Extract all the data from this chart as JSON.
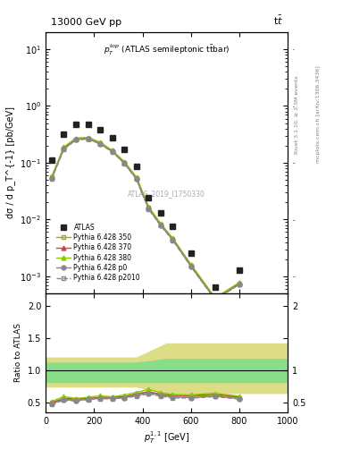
{
  "title_left": "13000 GeV pp",
  "title_right": "tt",
  "annotation": "p_T^{top} (ATLAS semileptonic ttbar)",
  "watermark": "ATLAS_2019_I1750330",
  "right_label_top": "Rivet 3.1.10, ≥ 3.3M events",
  "right_label_bottom": "mcplots.cern.ch [arXiv:1306.3436]",
  "ylabel_main": "dσ / d p_T^{-1} [pb/GeV]",
  "ylabel_ratio": "Ratio to ATLAS",
  "xlabel": "p_T^{1,1} [GeV]",
  "xlim": [
    0,
    1000
  ],
  "ylim_main": [
    0.0005,
    20
  ],
  "ylim_ratio": [
    0.35,
    2.2
  ],
  "atlas_x": [
    25,
    75,
    125,
    175,
    225,
    275,
    325,
    375,
    425,
    475,
    525,
    600,
    700,
    800
  ],
  "atlas_y": [
    0.11,
    0.32,
    0.48,
    0.48,
    0.38,
    0.28,
    0.17,
    0.085,
    0.024,
    0.013,
    0.0075,
    0.0026,
    0.00065,
    0.0013
  ],
  "mc_x": [
    25,
    75,
    125,
    175,
    225,
    275,
    325,
    375,
    425,
    475,
    525,
    600,
    700,
    800
  ],
  "mc_350_y": [
    0.055,
    0.18,
    0.26,
    0.27,
    0.22,
    0.16,
    0.1,
    0.054,
    0.016,
    0.0081,
    0.0045,
    0.00155,
    0.0004,
    0.00075
  ],
  "mc_370_y": [
    0.055,
    0.18,
    0.27,
    0.27,
    0.22,
    0.165,
    0.1,
    0.054,
    0.016,
    0.0082,
    0.0046,
    0.00158,
    0.00041,
    0.00076
  ],
  "mc_380_y": [
    0.057,
    0.19,
    0.27,
    0.28,
    0.23,
    0.165,
    0.105,
    0.056,
    0.017,
    0.0085,
    0.0047,
    0.00162,
    0.00042,
    0.00078
  ],
  "mc_p0_y": [
    0.053,
    0.175,
    0.255,
    0.265,
    0.215,
    0.158,
    0.098,
    0.052,
    0.0155,
    0.0079,
    0.0044,
    0.0015,
    0.00039,
    0.00073
  ],
  "mc_p2010_y": [
    0.052,
    0.172,
    0.252,
    0.263,
    0.213,
    0.156,
    0.097,
    0.051,
    0.0153,
    0.0078,
    0.0043,
    0.00148,
    0.000385,
    0.00072
  ],
  "ratio_350": [
    0.5,
    0.56,
    0.54,
    0.56,
    0.58,
    0.57,
    0.59,
    0.635,
    0.667,
    0.623,
    0.6,
    0.596,
    0.615,
    0.577
  ],
  "ratio_370": [
    0.5,
    0.5625,
    0.5625,
    0.5625,
    0.579,
    0.589,
    0.588,
    0.635,
    0.667,
    0.631,
    0.613,
    0.608,
    0.631,
    0.585
  ],
  "ratio_380": [
    0.518,
    0.594,
    0.5625,
    0.5833,
    0.605,
    0.589,
    0.618,
    0.659,
    0.708,
    0.654,
    0.627,
    0.623,
    0.646,
    0.6
  ],
  "ratio_p0": [
    0.482,
    0.547,
    0.531,
    0.552,
    0.566,
    0.564,
    0.576,
    0.612,
    0.646,
    0.608,
    0.587,
    0.577,
    0.6,
    0.562
  ],
  "ratio_p2010": [
    0.473,
    0.538,
    0.525,
    0.548,
    0.561,
    0.557,
    0.571,
    0.6,
    0.638,
    0.6,
    0.573,
    0.569,
    0.592,
    0.554
  ],
  "band_x_inner": [
    0,
    375,
    375,
    500,
    500,
    1000
  ],
  "band_y_inner_lo": [
    0.82,
    0.82,
    0.82,
    0.82,
    0.82,
    0.82
  ],
  "band_y_inner_hi": [
    1.12,
    1.12,
    1.12,
    1.18,
    1.18,
    1.18
  ],
  "band_x_outer": [
    0,
    375,
    375,
    500,
    500,
    1000
  ],
  "band_y_outer_lo": [
    0.75,
    0.75,
    0.75,
    0.65,
    0.65,
    0.65
  ],
  "band_y_outer_hi": [
    1.2,
    1.2,
    1.2,
    1.42,
    1.42,
    1.42
  ],
  "color_350": "#aaaa00",
  "color_370": "#cc4444",
  "color_380": "#88cc00",
  "color_p0": "#888888",
  "color_p2010": "#888888",
  "color_atlas": "#222222",
  "inner_band_color": "#88dd88",
  "outer_band_color": "#dddd88",
  "legend_entries": [
    "ATLAS",
    "Pythia 6.428 350",
    "Pythia 6.428 370",
    "Pythia 6.428 380",
    "Pythia 6.428 p0",
    "Pythia 6.428 p2010"
  ]
}
